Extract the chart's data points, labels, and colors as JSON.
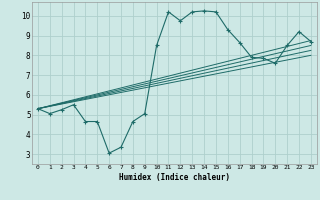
{
  "xlabel": "Humidex (Indice chaleur)",
  "bg_color": "#cde8e5",
  "grid_color": "#aed0cc",
  "line_color": "#1e6b68",
  "xlim": [
    -0.5,
    23.5
  ],
  "ylim": [
    2.5,
    10.7
  ],
  "xticks": [
    0,
    1,
    2,
    3,
    4,
    5,
    6,
    7,
    8,
    9,
    10,
    11,
    12,
    13,
    14,
    15,
    16,
    17,
    18,
    19,
    20,
    21,
    22,
    23
  ],
  "yticks": [
    3,
    4,
    5,
    6,
    7,
    8,
    9,
    10
  ],
  "main_x": [
    0,
    1,
    2,
    3,
    4,
    5,
    6,
    7,
    8,
    9,
    10,
    11,
    12,
    13,
    14,
    15,
    16,
    17,
    18,
    19,
    20,
    21,
    22,
    23
  ],
  "main_y": [
    5.3,
    5.05,
    5.25,
    5.5,
    4.65,
    4.65,
    3.05,
    3.35,
    4.65,
    5.05,
    8.5,
    10.2,
    9.75,
    10.2,
    10.25,
    10.2,
    9.3,
    8.65,
    7.9,
    7.85,
    7.6,
    8.5,
    9.2,
    8.7
  ],
  "line1_x": [
    0,
    23
  ],
  "line1_y": [
    5.3,
    8.75
  ],
  "line2_x": [
    0,
    23
  ],
  "line2_y": [
    5.3,
    8.5
  ],
  "line3_x": [
    0,
    23
  ],
  "line3_y": [
    5.3,
    8.25
  ],
  "line4_x": [
    0,
    23
  ],
  "line4_y": [
    5.3,
    8.0
  ]
}
